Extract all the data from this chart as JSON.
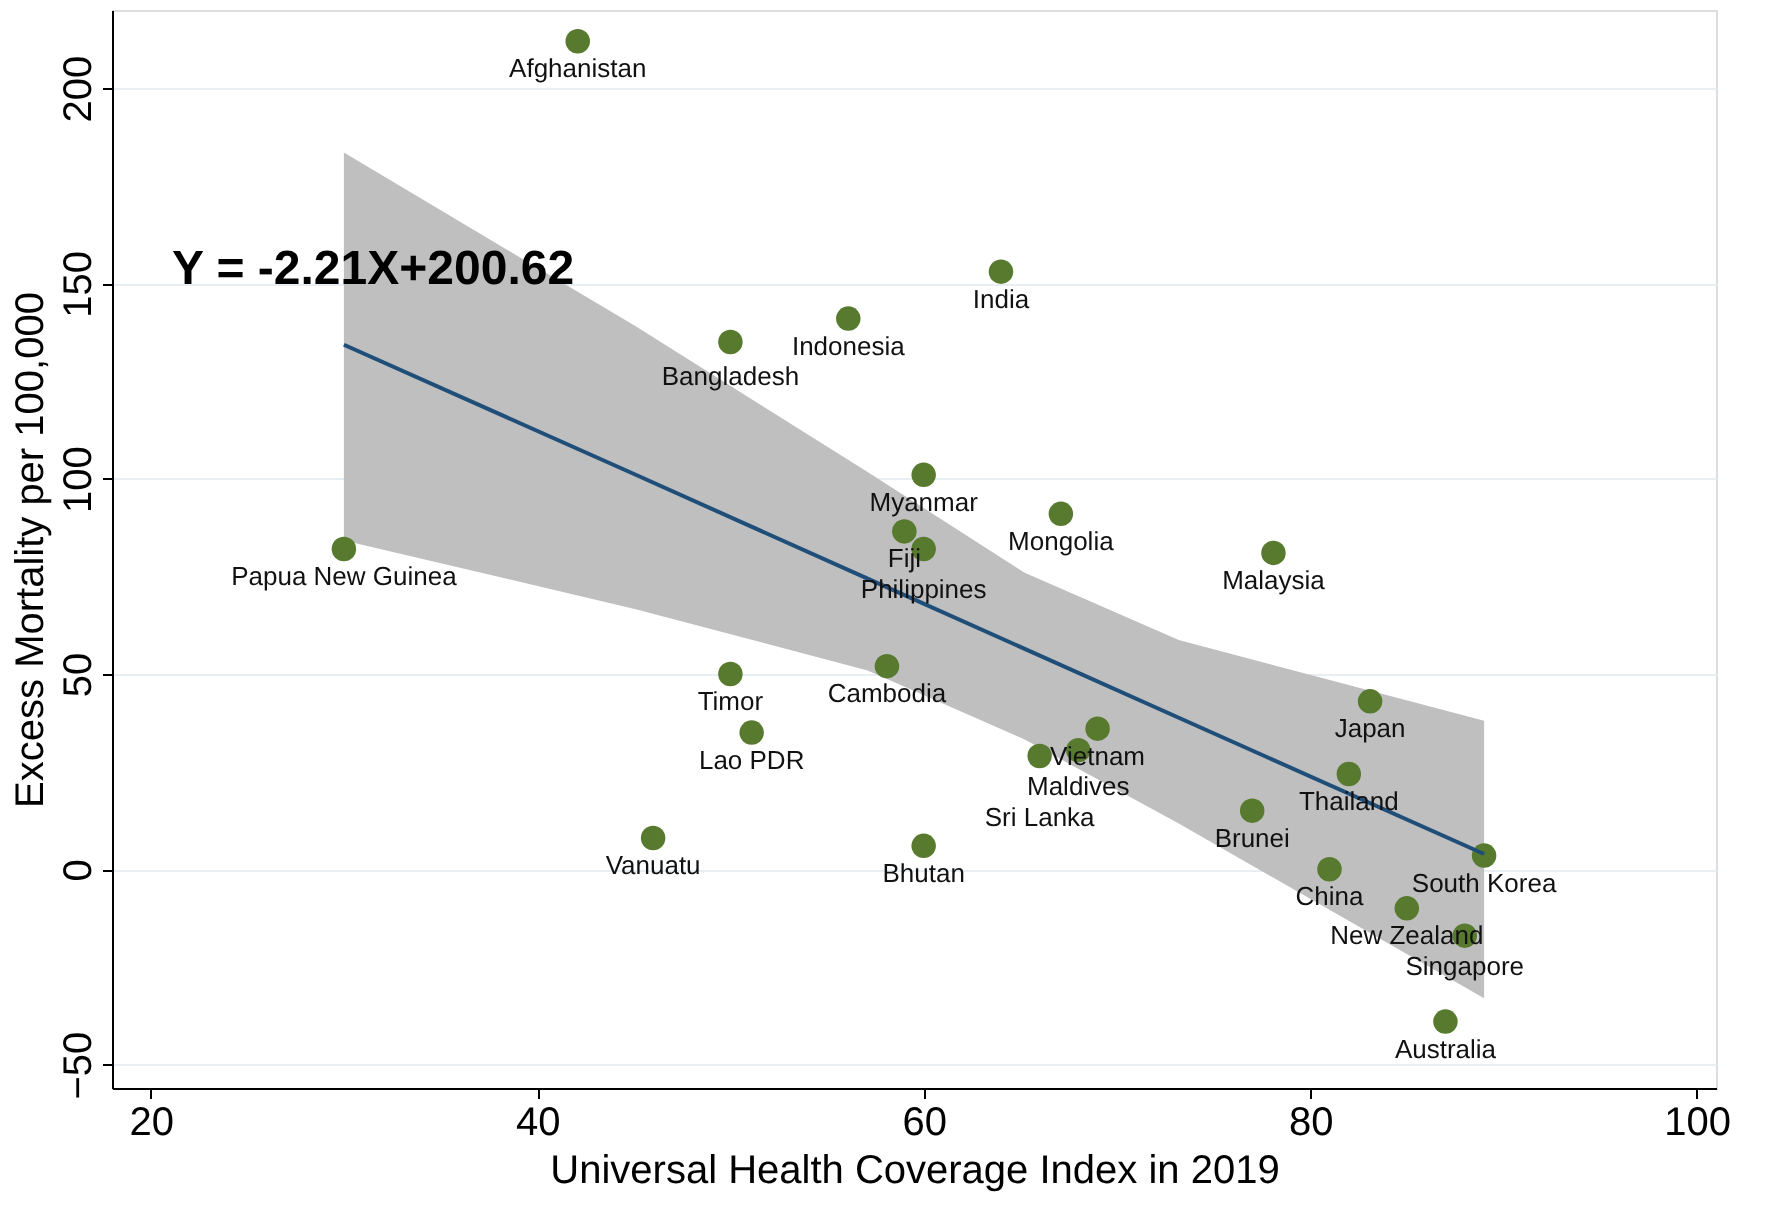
{
  "chart_data": {
    "type": "scatter",
    "xlabel": "Universal Health Coverage Index in 2019",
    "ylabel": "Excess Mortality per 100,000",
    "xlim": [
      18,
      101
    ],
    "ylim": [
      -56,
      220
    ],
    "xticks": [
      20,
      40,
      60,
      80,
      100
    ],
    "yticks": [
      -50,
      0,
      50,
      100,
      150,
      200
    ],
    "grid": "y",
    "series": [
      {
        "color": "#577a2e",
        "marker": "circle",
        "x": [
          42.1,
          64,
          56.1,
          50,
          60,
          67.1,
          59,
          60,
          30,
          78.1,
          50,
          58.1,
          51.1,
          83.1,
          69,
          68,
          66,
          82,
          77,
          46,
          60,
          81,
          89,
          85,
          88,
          87
        ],
        "values": [
          212,
          153,
          141,
          135,
          101,
          91,
          86.5,
          82,
          82,
          81,
          50,
          52,
          35,
          43,
          36,
          30.5,
          29,
          24.4,
          15,
          8,
          6,
          0,
          3.5,
          -10,
          -17,
          -39
        ]
      },
      {
        "type": "line",
        "color": "#1f4e79",
        "marker": "none",
        "x": [
          30,
          45.1,
          57.1,
          65.2,
          73.2,
          89
        ],
        "values": [
          134.3,
          101,
          74.4,
          56.5,
          38.8,
          3.9
        ],
        "lower": [
          84.2,
          66.6,
          50.9,
          33.3,
          11.7,
          -33
        ],
        "upper": [
          183.5,
          139,
          101.7,
          76,
          58.7,
          38
        ]
      }
    ],
    "annotations": [
      "Y = -2.21X+200.62",
      {
        "text": "Afghanistan",
        "x": 42.1,
        "y": 212
      },
      {
        "text": "India",
        "x": 64,
        "y": 153
      },
      {
        "text": "Indonesia",
        "x": 56.1,
        "y": 141
      },
      {
        "text": "Bangladesh",
        "x": 50,
        "y": 135
      },
      {
        "text": "Myanmar",
        "x": 60,
        "y": 101
      },
      {
        "text": "Mongolia",
        "x": 67.1,
        "y": 91
      },
      {
        "text": "Fiji",
        "x": 59,
        "y": 86.5
      },
      {
        "text": "Philippines",
        "x": 60,
        "y": 82
      },
      {
        "text": "Papua New Guinea",
        "x": 30,
        "y": 82
      },
      {
        "text": "Malaysia",
        "x": 78.1,
        "y": 81
      },
      {
        "text": "Timor",
        "x": 50,
        "y": 50
      },
      {
        "text": "Cambodia",
        "x": 58.1,
        "y": 52
      },
      {
        "text": "Lao PDR",
        "x": 51.1,
        "y": 35
      },
      {
        "text": "Japan",
        "x": 83.1,
        "y": 43
      },
      {
        "text": "Vietnam",
        "x": 69,
        "y": 36
      },
      {
        "text": "Maldives",
        "x": 68,
        "y": 30.5
      },
      {
        "text": "Sri Lanka",
        "x": 66,
        "y": 29
      },
      {
        "text": "Thailand",
        "x": 82,
        "y": 24.4
      },
      {
        "text": "Brunei",
        "x": 77,
        "y": 15
      },
      {
        "text": "Vanuatu",
        "x": 46,
        "y": 8
      },
      {
        "text": "Bhutan",
        "x": 60,
        "y": 6
      },
      {
        "text": "China",
        "x": 81,
        "y": 0
      },
      {
        "text": "South Korea",
        "x": 89,
        "y": 3.5
      },
      {
        "text": "New Zealand",
        "x": 85,
        "y": -10
      },
      {
        "text": "Singapore",
        "x": 88,
        "y": -17
      },
      {
        "text": "Australia",
        "x": 87,
        "y": -39
      }
    ]
  }
}
